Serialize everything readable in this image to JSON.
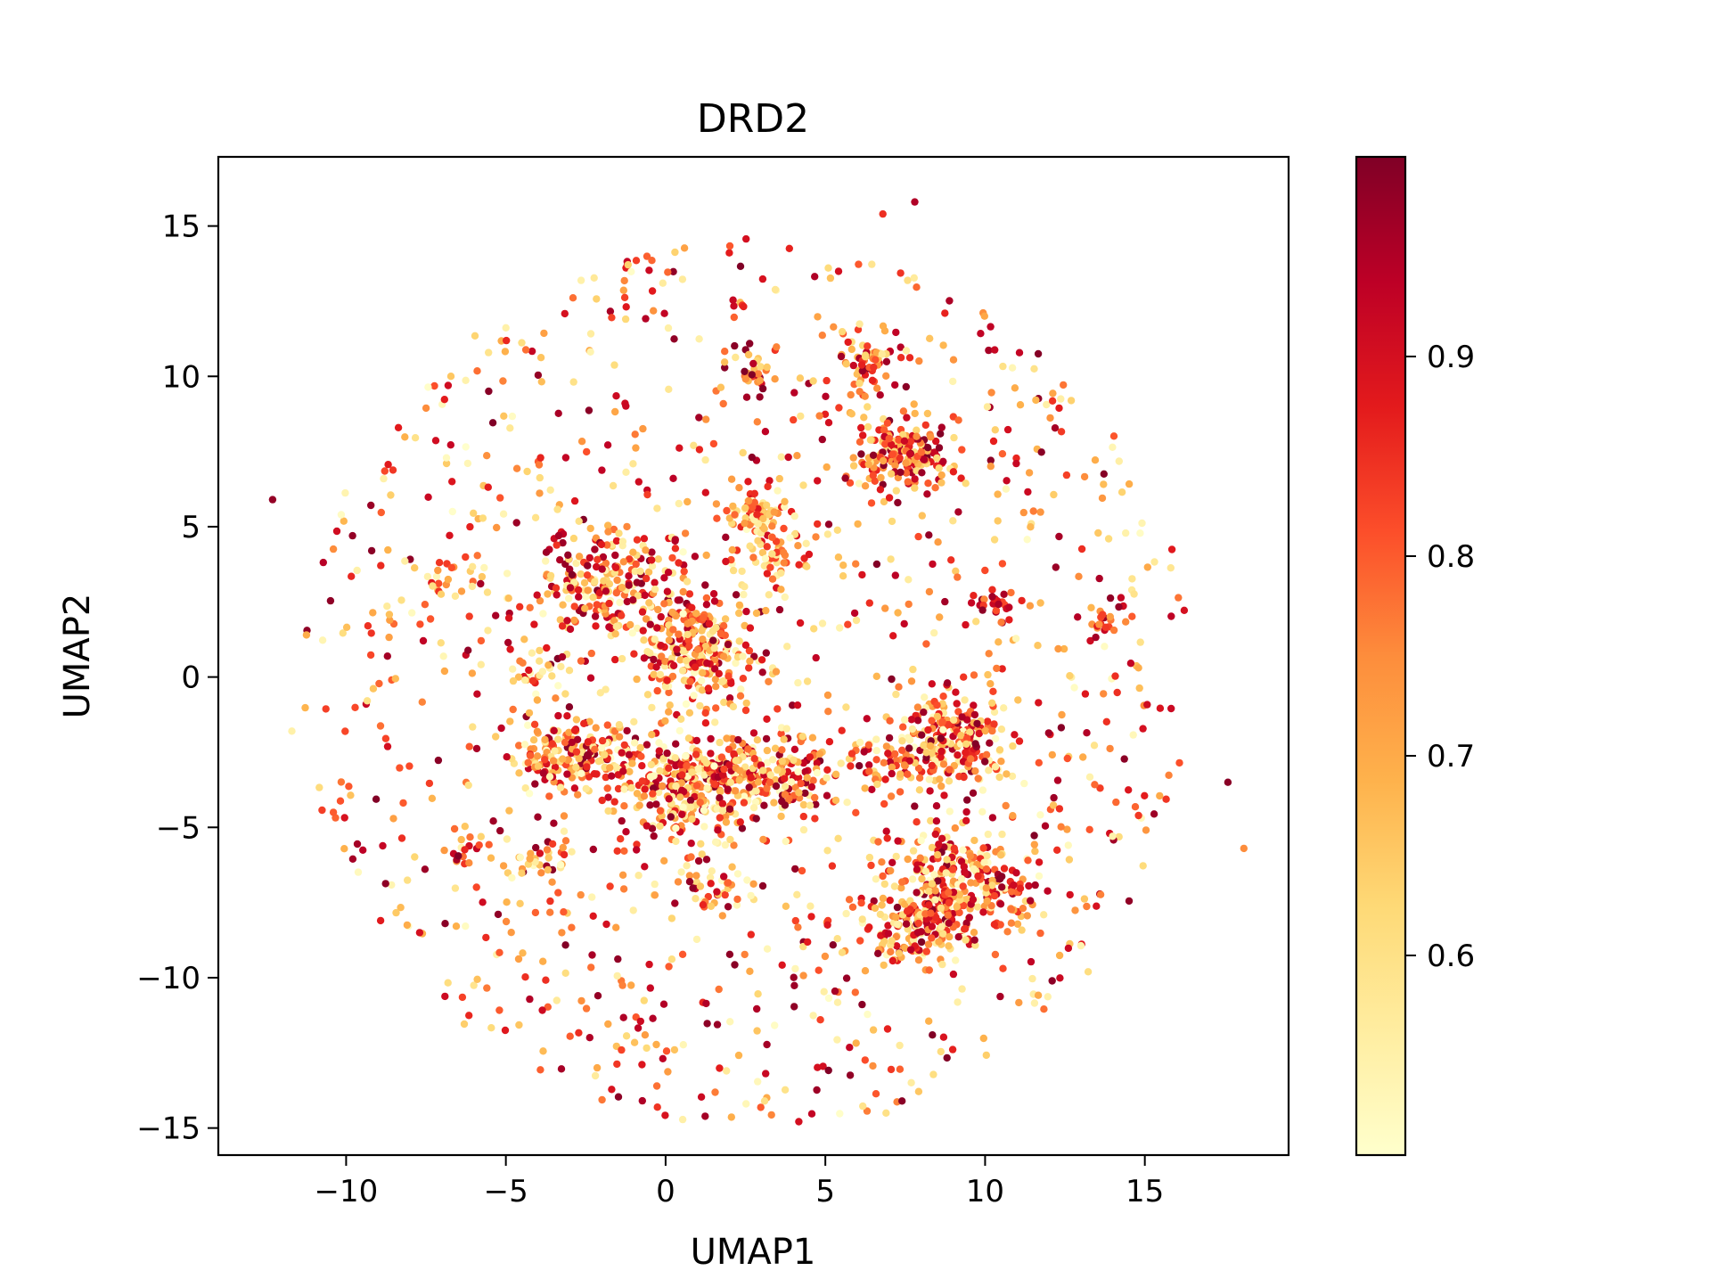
{
  "chart_data": {
    "type": "scatter",
    "title": "DRD2",
    "xlabel": "UMAP1",
    "ylabel": "UMAP2",
    "xlim": [
      -14,
      19.5
    ],
    "ylim": [
      -15.9,
      17.3
    ],
    "x_ticks": [
      -10,
      -5,
      0,
      5,
      10,
      15
    ],
    "y_ticks": [
      -15,
      -10,
      -5,
      0,
      5,
      10,
      15
    ],
    "x_tick_labels": [
      "−10",
      "−5",
      "0",
      "5",
      "10",
      "15"
    ],
    "y_tick_labels": [
      "−15",
      "−10",
      "−5",
      "0",
      "5",
      "10",
      "15"
    ],
    "grid": false,
    "colormap": "YlOrRd",
    "colorbar": {
      "range": [
        0.5,
        1.0
      ],
      "ticks": [
        0.6,
        0.7,
        0.8,
        0.9
      ],
      "tick_labels": [
        "0.6",
        "0.7",
        "0.8",
        "0.9"
      ]
    },
    "colormap_stops": [
      "#ffffcc",
      "#ffeda0",
      "#fed976",
      "#feb24c",
      "#fd8d3c",
      "#fc4e2a",
      "#e31a1c",
      "#bd0026",
      "#800026"
    ],
    "clusters": [
      {
        "x": 6.4,
        "y": 10.6,
        "sx": 0.55,
        "sy": 0.5,
        "n": 60,
        "vmin": 0.55,
        "vmax": 0.98
      },
      {
        "x": 7.4,
        "y": 7.4,
        "sx": 0.75,
        "sy": 0.55,
        "n": 170,
        "vmin": 0.6,
        "vmax": 1.0
      },
      {
        "x": 2.9,
        "y": 5.4,
        "sx": 0.55,
        "sy": 0.4,
        "n": 70,
        "vmin": 0.5,
        "vmax": 0.9
      },
      {
        "x": 3.5,
        "y": 4.2,
        "sx": 0.55,
        "sy": 0.5,
        "n": 55,
        "vmin": 0.5,
        "vmax": 0.9
      },
      {
        "x": 2.7,
        "y": 10.2,
        "sx": 0.4,
        "sy": 0.4,
        "n": 30,
        "vmin": 0.6,
        "vmax": 1.0
      },
      {
        "x": -1.9,
        "y": 3.0,
        "sx": 1.0,
        "sy": 0.9,
        "n": 210,
        "vmin": 0.5,
        "vmax": 1.0
      },
      {
        "x": 1.0,
        "y": 1.0,
        "sx": 0.9,
        "sy": 1.0,
        "n": 260,
        "vmin": 0.5,
        "vmax": 1.0
      },
      {
        "x": 0.9,
        "y": -3.6,
        "sx": 1.2,
        "sy": 0.9,
        "n": 330,
        "vmin": 0.5,
        "vmax": 1.0
      },
      {
        "x": -2.9,
        "y": -2.6,
        "sx": 1.0,
        "sy": 0.6,
        "n": 180,
        "vmin": 0.5,
        "vmax": 1.0
      },
      {
        "x": 3.6,
        "y": -3.2,
        "sx": 0.9,
        "sy": 0.7,
        "n": 130,
        "vmin": 0.5,
        "vmax": 1.0
      },
      {
        "x": 9.1,
        "y": -2.1,
        "sx": 0.85,
        "sy": 0.7,
        "n": 200,
        "vmin": 0.5,
        "vmax": 1.0
      },
      {
        "x": 7.3,
        "y": -2.6,
        "sx": 0.7,
        "sy": 0.5,
        "n": 70,
        "vmin": 0.5,
        "vmax": 1.0
      },
      {
        "x": 9.2,
        "y": -6.8,
        "sx": 1.0,
        "sy": 0.9,
        "n": 240,
        "vmin": 0.5,
        "vmax": 1.0
      },
      {
        "x": 7.8,
        "y": -8.3,
        "sx": 0.8,
        "sy": 0.6,
        "n": 150,
        "vmin": 0.55,
        "vmax": 1.0
      },
      {
        "x": 10.7,
        "y": -7.4,
        "sx": 0.4,
        "sy": 0.4,
        "n": 30,
        "vmin": 0.7,
        "vmax": 1.0
      },
      {
        "x": 10.3,
        "y": 2.5,
        "sx": 0.4,
        "sy": 0.3,
        "n": 25,
        "vmin": 0.75,
        "vmax": 1.0
      },
      {
        "x": 13.8,
        "y": 1.8,
        "sx": 0.45,
        "sy": 0.25,
        "n": 15,
        "vmin": 0.7,
        "vmax": 1.0
      },
      {
        "x": 1.6,
        "y": -7.0,
        "sx": 0.6,
        "sy": 0.5,
        "n": 40,
        "vmin": 0.5,
        "vmax": 1.0
      },
      {
        "x": -3.9,
        "y": -6.0,
        "sx": 0.5,
        "sy": 0.4,
        "n": 30,
        "vmin": 0.5,
        "vmax": 1.0
      },
      {
        "x": -6.2,
        "y": -5.5,
        "sx": 0.3,
        "sy": 0.3,
        "n": 12,
        "vmin": 0.6,
        "vmax": 1.0
      },
      {
        "x": -6.6,
        "y": 3.3,
        "sx": 0.4,
        "sy": 0.4,
        "n": 20,
        "vmin": 0.5,
        "vmax": 0.9
      },
      {
        "x": -3.8,
        "y": 0.3,
        "sx": 0.5,
        "sy": 0.4,
        "n": 25,
        "vmin": 0.5,
        "vmax": 1.0
      }
    ],
    "background": {
      "cx": 2.6,
      "cy": -0.2,
      "rx": 14.0,
      "ry": 14.8,
      "n": 1150,
      "vmin": 0.5,
      "vmax": 1.0
    },
    "outliers": [
      {
        "x": -12.3,
        "y": 5.9,
        "v": 0.98
      },
      {
        "x": -11.7,
        "y": -1.8,
        "v": 0.55
      },
      {
        "x": -10.4,
        "y": -4.5,
        "v": 0.8
      },
      {
        "x": 18.1,
        "y": -5.7,
        "v": 0.75
      },
      {
        "x": 17.6,
        "y": -3.5,
        "v": 0.99
      },
      {
        "x": 7.8,
        "y": 15.8,
        "v": 0.95
      },
      {
        "x": 6.8,
        "y": 15.4,
        "v": 0.85
      },
      {
        "x": 7.4,
        "y": -14.1,
        "v": 0.99
      },
      {
        "x": 6.9,
        "y": -14.5,
        "v": 0.6
      },
      {
        "x": 3.1,
        "y": -14.1,
        "v": 0.6
      },
      {
        "x": -9.8,
        "y": 4.7,
        "v": 0.98
      },
      {
        "x": -9.2,
        "y": 4.2,
        "v": 0.99
      },
      {
        "x": -7.7,
        "y": -8.5,
        "v": 0.9
      },
      {
        "x": -6.9,
        "y": -8.2,
        "v": 0.99
      }
    ]
  }
}
